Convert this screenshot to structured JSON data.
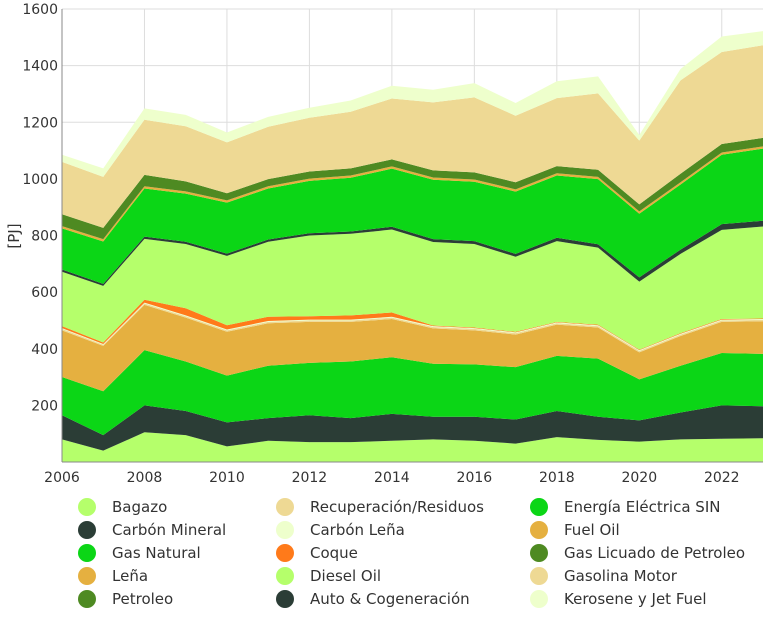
{
  "chart_data": {
    "type": "area",
    "stacked": true,
    "title": "",
    "xlabel": "",
    "ylabel": "[PJ]",
    "xlim": [
      2006,
      2023
    ],
    "ylim": [
      0,
      1600
    ],
    "x_ticks": [
      2006,
      2008,
      2010,
      2012,
      2014,
      2016,
      2018,
      2020,
      2022
    ],
    "y_ticks": [
      200,
      400,
      600,
      800,
      1000,
      1200,
      1400,
      1600
    ],
    "grid": true,
    "legend_position": "bottom",
    "x": [
      2006,
      2007,
      2008,
      2009,
      2010,
      2011,
      2012,
      2013,
      2014,
      2015,
      2016,
      2017,
      2018,
      2019,
      2020,
      2021,
      2022,
      2023
    ],
    "series": [
      {
        "name": "Bagazo",
        "color": "#b5ff6b",
        "values": [
          80,
          40,
          105,
          95,
          55,
          75,
          70,
          70,
          75,
          80,
          75,
          65,
          88,
          78,
          72,
          80,
          82,
          84
        ]
      },
      {
        "name": "Carbón Mineral",
        "color": "#2b3d36",
        "values": [
          85,
          55,
          95,
          85,
          85,
          80,
          95,
          85,
          95,
          80,
          85,
          85,
          92,
          82,
          75,
          95,
          118,
          113
        ]
      },
      {
        "name": "Gas Natural",
        "color": "#0bd616",
        "values": [
          135,
          155,
          195,
          175,
          165,
          185,
          185,
          200,
          200,
          187,
          185,
          185,
          195,
          205,
          145,
          165,
          185,
          185
        ]
      },
      {
        "name": "Leña",
        "color": "#e5b040",
        "values": [
          165,
          160,
          160,
          155,
          155,
          150,
          145,
          140,
          135,
          125,
          120,
          115,
          110,
          110,
          95,
          105,
          110,
          115
        ]
      },
      {
        "name": "Petroleo",
        "color": "#4e8a22",
        "values": [
          0,
          0,
          0,
          0,
          0,
          0,
          0,
          0,
          0,
          0,
          0,
          0,
          0,
          0,
          0,
          0,
          0,
          0
        ]
      },
      {
        "name": "Recuperación/Residuos",
        "color": "#eed994",
        "values": [
          5,
          4,
          5,
          5,
          5,
          5,
          5,
          5,
          5,
          5,
          5,
          5,
          5,
          5,
          5,
          5,
          5,
          5
        ]
      },
      {
        "name": "Carbón Leña",
        "color": "#eeffcc",
        "values": [
          3,
          3,
          3,
          3,
          3,
          3,
          3,
          3,
          3,
          3,
          3,
          3,
          3,
          3,
          3,
          3,
          3,
          3
        ]
      },
      {
        "name": "Coque",
        "color": "#ff7a1a",
        "values": [
          7,
          5,
          10,
          25,
          15,
          15,
          12,
          15,
          15,
          2,
          2,
          2,
          2,
          2,
          2,
          2,
          2,
          2
        ]
      },
      {
        "name": "Diesel Oil",
        "color": "#b5ff6b",
        "values": [
          192,
          200,
          215,
          227,
          245,
          265,
          285,
          288,
          293,
          295,
          295,
          265,
          285,
          272,
          240,
          280,
          315,
          325
        ]
      },
      {
        "name": "Auto & Cogeneración",
        "color": "#2b3d36",
        "values": [
          8,
          7,
          8,
          8,
          8,
          8,
          8,
          8,
          10,
          10,
          10,
          10,
          12,
          12,
          15,
          15,
          20,
          20
        ]
      },
      {
        "name": "Energía Eléctrica SIN",
        "color": "#0bd616",
        "values": [
          145,
          150,
          170,
          170,
          180,
          180,
          185,
          190,
          205,
          210,
          210,
          220,
          220,
          230,
          225,
          230,
          245,
          255
        ]
      },
      {
        "name": "Fuel Oil",
        "color": "#e5b040",
        "values": [
          8,
          8,
          8,
          8,
          8,
          8,
          8,
          8,
          8,
          8,
          8,
          8,
          8,
          8,
          8,
          8,
          8,
          8
        ]
      },
      {
        "name": "Gas Licuado de Petroleo",
        "color": "#4e8a22",
        "values": [
          42,
          40,
          40,
          35,
          25,
          25,
          25,
          25,
          25,
          25,
          25,
          25,
          25,
          25,
          25,
          30,
          30,
          30
        ]
      },
      {
        "name": "Gasolina Motor",
        "color": "#eed994",
        "values": [
          185,
          180,
          195,
          195,
          180,
          185,
          190,
          200,
          215,
          240,
          265,
          235,
          240,
          270,
          225,
          330,
          325,
          327
        ]
      },
      {
        "name": "Kerosene y Jet Fuel",
        "color": "#eeffcc",
        "values": [
          25,
          30,
          40,
          40,
          35,
          35,
          35,
          40,
          45,
          45,
          50,
          45,
          60,
          60,
          20,
          40,
          55,
          50
        ]
      }
    ]
  }
}
